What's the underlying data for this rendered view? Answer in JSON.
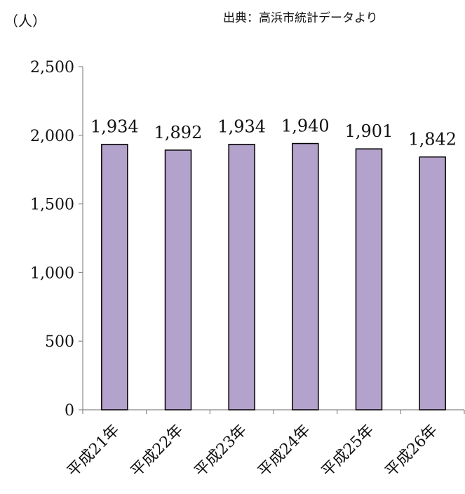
{
  "header": {
    "unit_label": "（人）",
    "source_label": "出典：高浜市統計データより"
  },
  "chart_data": {
    "type": "bar",
    "title": "",
    "xlabel": "",
    "ylabel": "",
    "ylim": [
      0,
      2500
    ],
    "yticks": [
      0,
      500,
      1000,
      1500,
      2000,
      2500
    ],
    "ytick_labels": [
      "0",
      "500",
      "1,000",
      "1,500",
      "2,000",
      "2,500"
    ],
    "categories": [
      "平成21年",
      "平成22年",
      "平成23年",
      "平成24年",
      "平成25年",
      "平成26年"
    ],
    "values": [
      1934,
      1892,
      1934,
      1940,
      1901,
      1842
    ],
    "value_labels": [
      "1,934",
      "1,892",
      "1,934",
      "1,940",
      "1,901",
      "1,842"
    ],
    "grid": false,
    "bar_color": "#b3a2cb",
    "bar_edge_color": "#000000"
  }
}
